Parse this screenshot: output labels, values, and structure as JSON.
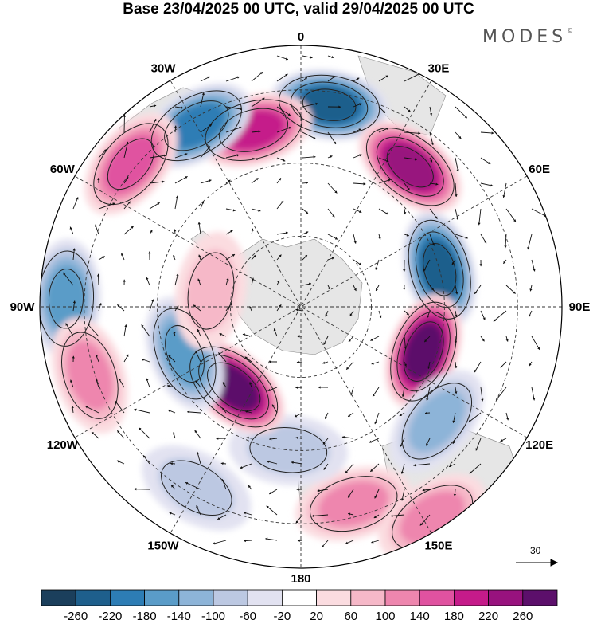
{
  "header": {
    "title": "Base 23/04/2025 00 UTC, valid 29/04/2025 00 UTC",
    "brand": "MODES",
    "brand_mark": "©"
  },
  "map": {
    "projection": "south-polar-stereographic",
    "longitude_labels": [
      "0",
      "30E",
      "60E",
      "90E",
      "120E",
      "150E",
      "180",
      "150W",
      "120W",
      "90W",
      "60W",
      "30W"
    ],
    "reference_vector": "30",
    "anomaly_centers": [
      {
        "value": -240,
        "lon": 8,
        "colat": 0.78
      },
      {
        "value": 200,
        "lon": -15,
        "colat": 0.7
      },
      {
        "value": -180,
        "lon": -30,
        "colat": 0.8
      },
      {
        "value": 140,
        "lon": -50,
        "colat": 0.85
      },
      {
        "value": 240,
        "lon": 38,
        "colat": 0.68
      },
      {
        "value": -240,
        "lon": 75,
        "colat": 0.55
      },
      {
        "value": 250,
        "lon": 110,
        "colat": 0.5
      },
      {
        "value": -120,
        "lon": 130,
        "colat": 0.68
      },
      {
        "value": 100,
        "lon": 165,
        "colat": 0.78
      },
      {
        "value": 100,
        "lon": 148,
        "colat": 0.95
      },
      {
        "value": -80,
        "lon": -150,
        "colat": 0.8
      },
      {
        "value": -80,
        "lon": -175,
        "colat": 0.55
      },
      {
        "value": 260,
        "lon": -140,
        "colat": 0.4
      },
      {
        "value": -140,
        "lon": -112,
        "colat": 0.48
      },
      {
        "value": -160,
        "lon": -88,
        "colat": 0.9
      },
      {
        "value": 100,
        "lon": -108,
        "colat": 0.85
      },
      {
        "value": 60,
        "lon": -80,
        "colat": 0.35
      }
    ]
  },
  "colorbar": {
    "tick_labels": [
      "-260",
      "-220",
      "-180",
      "-140",
      "-100",
      "-60",
      "-20",
      "20",
      "60",
      "100",
      "140",
      "180",
      "220",
      "260"
    ],
    "colors": [
      "#1b3f5c",
      "#1e5f8c",
      "#2d7db5",
      "#5a9cc8",
      "#8db4d8",
      "#bcc8e2",
      "#e2e2f1",
      "#ffffff",
      "#fbdce0",
      "#f6b8c8",
      "#ee86ae",
      "#e052a0",
      "#c51b8a",
      "#98127e",
      "#5c0f6b"
    ]
  }
}
